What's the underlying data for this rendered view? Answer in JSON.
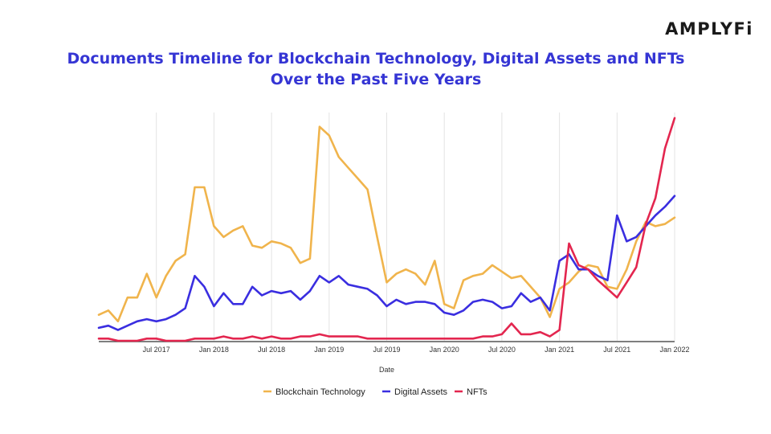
{
  "logo": "AMPLYFi",
  "chart_data": {
    "type": "line",
    "title": "Documents Timeline for Blockchain Technology, Digital Assets and NFTs",
    "subtitle": "Over the Past Five Years",
    "xlabel": "Date",
    "ylabel": "",
    "grid": "vertical",
    "legend_position": "bottom",
    "x_tick_labels": [
      "Jul 2017",
      "Jan 2018",
      "Jul 2018",
      "Jan 2019",
      "Jul 2019",
      "Jan 2020",
      "Jul 2020",
      "Jan 2021",
      "Jul 2021",
      "Jan 2022"
    ],
    "x_start": "2017-01",
    "x_end": "2022-01",
    "y_range": [
      0,
      100
    ],
    "series": [
      {
        "name": "Blockchain Technology",
        "color": "#f0b44c",
        "values": [
          12,
          14,
          9,
          20,
          20,
          31,
          20,
          30,
          37,
          40,
          71,
          71,
          53,
          48,
          51,
          53,
          44,
          43,
          46,
          45,
          43,
          36,
          38,
          99,
          95,
          85,
          80,
          75,
          70,
          48,
          27,
          31,
          33,
          31,
          26,
          37,
          17,
          15,
          28,
          30,
          31,
          35,
          32,
          29,
          30,
          25,
          20,
          11,
          24,
          27,
          32,
          35,
          34,
          25,
          24,
          33,
          46,
          55,
          53,
          54,
          57
        ]
      },
      {
        "name": "Digital Assets",
        "color": "#3a2ee0",
        "values": [
          6,
          7,
          5,
          7,
          9,
          10,
          9,
          10,
          12,
          15,
          30,
          25,
          16,
          22,
          17,
          17,
          25,
          21,
          23,
          22,
          23,
          19,
          23,
          30,
          27,
          30,
          26,
          25,
          24,
          21,
          16,
          19,
          17,
          18,
          18,
          17,
          13,
          12,
          14,
          18,
          19,
          18,
          15,
          16,
          22,
          18,
          20,
          14,
          37,
          40,
          33,
          33,
          30,
          28,
          58,
          46,
          48,
          53,
          58,
          62,
          67
        ]
      },
      {
        "name": "NFTs",
        "color": "#e3264f",
        "values": [
          1,
          1,
          0,
          0,
          0,
          1,
          1,
          0,
          0,
          0,
          1,
          1,
          1,
          2,
          1,
          1,
          2,
          1,
          2,
          1,
          1,
          2,
          2,
          3,
          2,
          2,
          2,
          2,
          1,
          1,
          1,
          1,
          1,
          1,
          1,
          1,
          1,
          1,
          1,
          1,
          2,
          2,
          3,
          8,
          3,
          3,
          4,
          2,
          5,
          45,
          35,
          33,
          28,
          24,
          20,
          27,
          34,
          54,
          66,
          89,
          103
        ]
      }
    ]
  }
}
